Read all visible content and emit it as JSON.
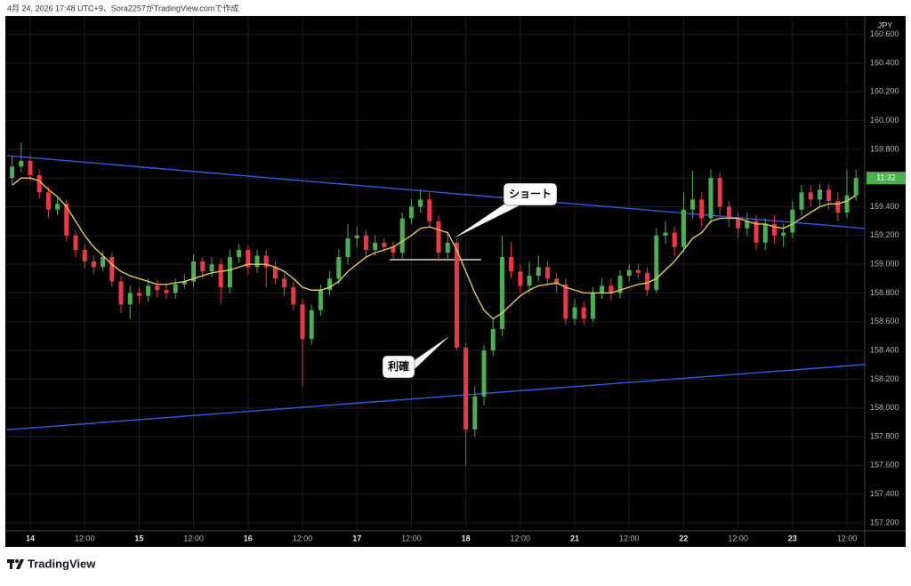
{
  "header": {
    "title": "4月 24, 2026 17:48 UTC+9、Sora2257がTradingView.comで作成"
  },
  "brand": "TradingView",
  "chart_data": {
    "type": "candlestick",
    "currency": "JPY",
    "price_tag": "11:32",
    "up_color": "#4caf50",
    "down_color": "#f23645",
    "grid": true,
    "xlim": [
      -2.745,
      91.96
    ],
    "ylim": [
      157.144,
      160.728
    ],
    "xticks": [
      {
        "value": 0,
        "label": "14"
      },
      {
        "value": 6,
        "label": "12:00"
      },
      {
        "value": 12,
        "label": "15"
      },
      {
        "value": 18,
        "label": "12:00"
      },
      {
        "value": 24,
        "label": "16"
      },
      {
        "value": 30,
        "label": "12:00"
      },
      {
        "value": 36,
        "label": "17"
      },
      {
        "value": 42,
        "label": "12:00"
      },
      {
        "value": 48,
        "label": "18"
      },
      {
        "value": 54,
        "label": "12:00"
      },
      {
        "value": 60,
        "label": "21"
      },
      {
        "value": 66,
        "label": "12:00"
      },
      {
        "value": 72,
        "label": "22"
      },
      {
        "value": 78,
        "label": "12:00"
      },
      {
        "value": 84,
        "label": "23"
      },
      {
        "value": 90,
        "label": "12:00"
      }
    ],
    "yticks": [
      {
        "value": 160.6,
        "label": "160.600"
      },
      {
        "value": 160.4,
        "label": "160.400"
      },
      {
        "value": 160.2,
        "label": "160.200"
      },
      {
        "value": 160.0,
        "label": "160.000"
      },
      {
        "value": 159.8,
        "label": "159.800"
      },
      {
        "value": 159.6,
        "label": "159.600"
      },
      {
        "value": 159.4,
        "label": "159.400"
      },
      {
        "value": 159.2,
        "label": "159.200"
      },
      {
        "value": 159.0,
        "label": "159.000"
      },
      {
        "value": 158.8,
        "label": "158.800"
      },
      {
        "value": 158.6,
        "label": "158.600"
      },
      {
        "value": 158.4,
        "label": "158.400"
      },
      {
        "value": 158.2,
        "label": "158.200"
      },
      {
        "value": 158.0,
        "label": "158.000"
      },
      {
        "value": 157.8,
        "label": "157.800"
      },
      {
        "value": 157.6,
        "label": "157.600"
      },
      {
        "value": 157.4,
        "label": "157.400"
      },
      {
        "value": 157.2,
        "label": "157.200"
      }
    ],
    "x": [
      -2,
      -1,
      0,
      1,
      2,
      3,
      4,
      5,
      6,
      7,
      8,
      9,
      10,
      11,
      12,
      13,
      14,
      15,
      16,
      17,
      18,
      19,
      20,
      21,
      22,
      23,
      24,
      25,
      26,
      27,
      28,
      29,
      30,
      31,
      32,
      33,
      34,
      35,
      36,
      37,
      38,
      39,
      40,
      41,
      42,
      43,
      44,
      45,
      46,
      47,
      48,
      49,
      50,
      51,
      52,
      53,
      54,
      55,
      56,
      57,
      58,
      59,
      60,
      61,
      62,
      63,
      64,
      65,
      66,
      67,
      68,
      69,
      70,
      71,
      72,
      73,
      74,
      75,
      76,
      77,
      78,
      79,
      80,
      81,
      82,
      83,
      84,
      85,
      86,
      87,
      88,
      89,
      90,
      91
    ],
    "open": [
      159.6,
      159.68,
      159.72,
      159.62,
      159.5,
      159.38,
      159.42,
      159.2,
      159.1,
      159.02,
      158.98,
      159.05,
      158.88,
      158.72,
      158.8,
      158.78,
      158.85,
      158.82,
      158.8,
      158.86,
      158.88,
      159.02,
      158.95,
      159.0,
      158.84,
      159.05,
      159.1,
      158.98,
      159.06,
      158.98,
      158.9,
      158.84,
      158.72,
      158.48,
      158.68,
      158.82,
      158.9,
      159.05,
      159.18,
      159.2,
      159.1,
      159.15,
      159.12,
      159.08,
      159.32,
      159.4,
      159.45,
      159.3,
      159.08,
      159.15,
      158.42,
      157.85,
      158.08,
      158.4,
      158.55,
      159.05,
      158.95,
      158.85,
      158.92,
      158.98,
      158.9,
      158.86,
      158.62,
      158.7,
      158.62,
      158.8,
      158.85,
      158.8,
      158.92,
      158.96,
      158.94,
      158.82,
      159.2,
      159.22,
      159.12,
      159.38,
      159.45,
      159.32,
      159.6,
      159.4,
      159.32,
      159.25,
      159.3,
      159.15,
      159.28,
      159.2,
      159.22,
      159.38,
      159.5,
      159.45,
      159.52,
      159.44,
      159.36,
      159.48
    ],
    "high": [
      159.75,
      159.85,
      159.76,
      159.66,
      159.54,
      159.46,
      159.45,
      159.24,
      159.14,
      159.06,
      159.09,
      159.08,
      158.92,
      158.85,
      158.84,
      158.9,
      158.89,
      158.86,
      158.9,
      158.93,
      159.07,
      159.05,
      159.05,
      159.04,
      159.1,
      159.14,
      159.13,
      159.1,
      159.1,
      159.02,
      158.94,
      158.88,
      158.76,
      158.72,
      158.86,
      158.95,
      159.1,
      159.28,
      159.26,
      159.24,
      159.2,
      159.18,
      159.16,
      159.36,
      159.45,
      159.52,
      159.5,
      159.34,
      159.22,
      159.18,
      158.45,
      158.15,
      158.44,
      158.62,
      159.2,
      159.15,
      159.0,
      159.02,
      159.06,
      159.02,
      158.94,
      158.9,
      158.76,
      158.74,
      158.84,
      158.9,
      158.9,
      158.96,
      159.0,
      159.0,
      158.98,
      159.25,
      159.3,
      159.26,
      159.5,
      159.65,
      159.5,
      159.66,
      159.64,
      159.44,
      159.36,
      159.36,
      159.34,
      159.32,
      159.34,
      159.28,
      159.44,
      159.55,
      159.55,
      159.56,
      159.56,
      159.5,
      159.66,
      159.66
    ],
    "low": [
      159.56,
      159.64,
      159.58,
      159.46,
      159.32,
      159.34,
      159.16,
      159.05,
      158.97,
      158.93,
      158.95,
      158.84,
      158.66,
      158.62,
      158.73,
      158.74,
      158.77,
      158.76,
      158.76,
      158.83,
      158.84,
      158.9,
      158.91,
      158.72,
      158.8,
      159.01,
      158.93,
      158.94,
      158.84,
      158.86,
      158.78,
      158.68,
      158.15,
      158.44,
      158.64,
      158.78,
      158.86,
      159.0,
      159.12,
      159.05,
      159.06,
      159.08,
      159.04,
      159.04,
      159.28,
      159.36,
      159.26,
      159.02,
      159.02,
      158.4,
      157.6,
      157.8,
      158.02,
      158.36,
      158.5,
      158.9,
      158.8,
      158.8,
      158.88,
      158.85,
      158.8,
      158.58,
      158.58,
      158.58,
      158.6,
      158.76,
      158.75,
      158.76,
      158.88,
      158.9,
      158.78,
      158.8,
      159.14,
      159.06,
      159.08,
      159.32,
      159.26,
      159.28,
      159.34,
      159.26,
      159.18,
      159.2,
      159.1,
      159.1,
      159.14,
      159.12,
      159.18,
      159.34,
      159.4,
      159.4,
      159.38,
      159.3,
      159.32,
      159.44
    ],
    "close": [
      159.68,
      159.72,
      159.62,
      159.5,
      159.38,
      159.42,
      159.2,
      159.1,
      159.02,
      158.98,
      159.05,
      158.88,
      158.72,
      158.8,
      158.78,
      158.85,
      158.82,
      158.8,
      158.86,
      158.88,
      159.02,
      158.95,
      159.0,
      158.84,
      159.05,
      159.1,
      158.98,
      159.06,
      158.98,
      158.9,
      158.84,
      158.72,
      158.48,
      158.68,
      158.82,
      158.9,
      159.05,
      159.18,
      159.2,
      159.1,
      159.15,
      159.12,
      159.08,
      159.32,
      159.4,
      159.45,
      159.3,
      159.08,
      159.15,
      158.42,
      157.85,
      158.08,
      158.4,
      158.55,
      159.05,
      158.95,
      158.85,
      158.92,
      158.98,
      158.9,
      158.86,
      158.62,
      158.7,
      158.62,
      158.8,
      158.85,
      158.8,
      158.92,
      158.96,
      158.94,
      158.82,
      159.2,
      159.22,
      159.12,
      159.38,
      159.45,
      159.32,
      159.6,
      159.4,
      159.32,
      159.25,
      159.3,
      159.15,
      159.28,
      159.2,
      159.22,
      159.38,
      159.5,
      159.45,
      159.52,
      159.44,
      159.36,
      159.48,
      159.6
    ],
    "ma": {
      "color": "#e6cf45",
      "values": [
        159.55,
        159.6,
        159.6,
        159.58,
        159.52,
        159.47,
        159.4,
        159.3,
        159.2,
        159.12,
        159.06,
        159.0,
        158.95,
        158.92,
        158.9,
        158.88,
        158.86,
        158.86,
        158.87,
        158.88,
        158.9,
        158.92,
        158.94,
        158.95,
        158.96,
        158.98,
        159.0,
        159.0,
        159.0,
        158.98,
        158.95,
        158.9,
        158.84,
        158.82,
        158.82,
        158.84,
        158.88,
        158.95,
        159.0,
        159.05,
        159.08,
        159.1,
        159.12,
        159.16,
        159.2,
        159.25,
        159.26,
        159.24,
        159.22,
        159.1,
        158.95,
        158.8,
        158.68,
        158.62,
        158.66,
        158.72,
        158.78,
        158.82,
        158.85,
        158.86,
        158.87,
        158.84,
        158.82,
        158.8,
        158.8,
        158.8,
        158.8,
        158.82,
        158.84,
        158.86,
        158.87,
        158.9,
        158.96,
        159.02,
        159.1,
        159.18,
        159.22,
        159.3,
        159.32,
        159.32,
        159.32,
        159.3,
        159.28,
        159.28,
        159.26,
        159.25,
        159.28,
        159.32,
        159.36,
        159.4,
        159.42,
        159.42,
        159.44,
        159.48
      ]
    },
    "lines": [
      {
        "color": "#2f5bea",
        "x": [
          -2.55,
          91.96
        ],
        "y": [
          159.756,
          159.249
        ]
      },
      {
        "color": "#2f5bea",
        "x": [
          -2.55,
          91.96
        ],
        "y": [
          157.848,
          158.302
        ]
      },
      {
        "color": "#ffffff",
        "x": [
          39.6,
          49.7
        ],
        "y": [
          159.032,
          159.032
        ]
      }
    ],
    "annotations": [
      {
        "text": "ショート"
      },
      {
        "text": "利確"
      }
    ]
  }
}
